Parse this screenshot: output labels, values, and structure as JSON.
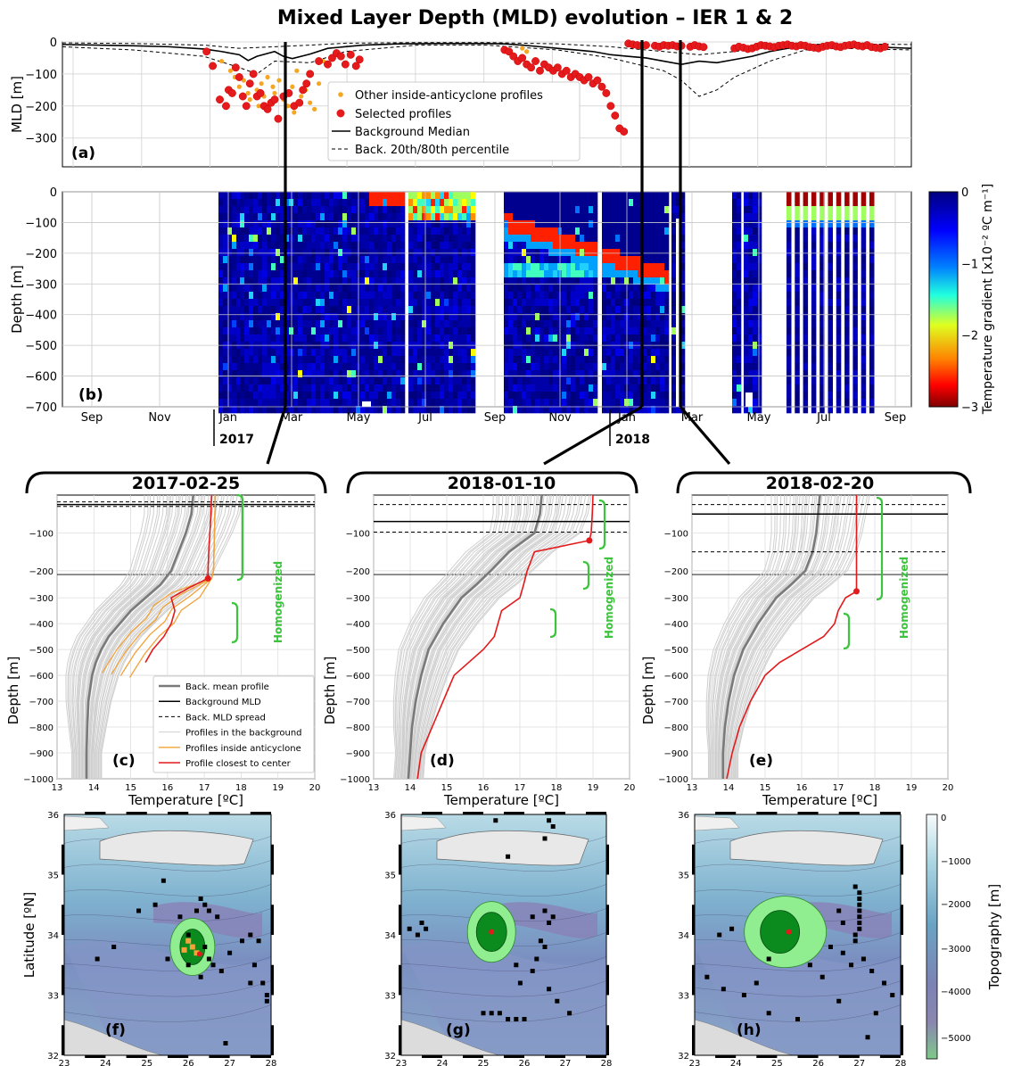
{
  "figure": {
    "title": "Mixed Layer Depth (MLD) evolution – IER 1 & 2"
  },
  "chart_data": [
    {
      "panel": "(a)",
      "type": "line",
      "ylabel": "MLD [m]",
      "ylim": [
        -390,
        0
      ],
      "yticks": [
        0,
        -100,
        -200,
        -300
      ],
      "grid": true,
      "legend_position": "center",
      "legend": [
        "Other inside-anticyclone profiles",
        "Selected profiles",
        "Background Median",
        "Back. 20th/80th percentile"
      ],
      "series": [
        {
          "name": "Background Median",
          "x": [
            0,
            40,
            80,
            120,
            160,
            180,
            200,
            210,
            220,
            240,
            250,
            260,
            280,
            300,
            340,
            380,
            420,
            460,
            480,
            500,
            520,
            540,
            560,
            580,
            600,
            620,
            640,
            660,
            680,
            700,
            720,
            740,
            760,
            780,
            800,
            820,
            840,
            860,
            880,
            900,
            920,
            940,
            960
          ],
          "y": [
            -8,
            -10,
            -12,
            -15,
            -22,
            -30,
            -40,
            -58,
            -45,
            -30,
            -45,
            -52,
            -38,
            -20,
            -10,
            -6,
            -5,
            -5,
            -5,
            -6,
            -10,
            -15,
            -20,
            -25,
            -30,
            -40,
            -45,
            -50,
            -60,
            -70,
            -60,
            -65,
            -55,
            -45,
            -30,
            -20,
            -12,
            -10,
            -12,
            -14,
            -16,
            -18,
            -20
          ]
        },
        {
          "name": "Back. 20th percentile",
          "x": [
            0,
            80,
            160,
            200,
            240,
            280,
            320,
            400,
            480,
            560,
            620,
            680,
            720,
            740,
            760,
            800,
            840,
            880,
            960
          ],
          "y": [
            -3,
            -5,
            -10,
            -20,
            -15,
            -10,
            -4,
            -2,
            -2,
            -6,
            -15,
            -30,
            -40,
            -35,
            -30,
            -15,
            -8,
            -6,
            -8
          ]
        },
        {
          "name": "Back. 80th percentile",
          "x": [
            0,
            80,
            160,
            200,
            220,
            240,
            280,
            320,
            400,
            480,
            560,
            620,
            680,
            700,
            720,
            740,
            760,
            800,
            840,
            880,
            960
          ],
          "y": [
            -15,
            -25,
            -45,
            -80,
            -100,
            -60,
            -65,
            -30,
            -10,
            -10,
            -25,
            -50,
            -90,
            -120,
            -170,
            -150,
            -110,
            -60,
            -25,
            -20,
            -25
          ]
        },
        {
          "name": "Other inside-anticyclone profiles",
          "type": "scatter",
          "x": [
            180,
            190,
            195,
            200,
            205,
            210,
            212,
            215,
            220,
            222,
            225,
            228,
            230,
            232,
            235,
            238,
            240,
            245,
            250,
            255,
            260,
            262,
            265,
            270,
            275,
            280,
            285,
            290,
            295,
            520,
            525
          ],
          "y": [
            -60,
            -90,
            -110,
            -140,
            -120,
            -160,
            -180,
            -100,
            -150,
            -200,
            -130,
            -170,
            -210,
            -110,
            -190,
            -140,
            -160,
            -120,
            -180,
            -200,
            -140,
            -220,
            -90,
            -170,
            -150,
            -190,
            -210,
            -130,
            -60,
            -20,
            -30
          ]
        },
        {
          "name": "Selected profiles",
          "type": "scatter",
          "x": [
            163,
            170,
            178,
            185,
            188,
            192,
            196,
            200,
            204,
            208,
            212,
            216,
            220,
            224,
            228,
            232,
            236,
            240,
            244,
            250,
            256,
            262,
            268,
            272,
            276,
            280,
            290,
            300,
            305,
            310,
            315,
            320,
            326,
            332,
            336,
            500,
            505,
            510,
            515,
            520,
            525,
            530,
            535,
            540,
            545,
            550,
            555,
            560,
            565,
            570,
            575,
            580,
            585,
            590,
            595,
            600,
            605,
            610,
            615,
            620,
            625,
            630,
            635,
            640,
            645,
            650,
            655,
            660,
            670,
            675,
            680,
            685,
            690,
            695,
            700,
            710,
            715,
            720,
            725,
            760,
            765,
            770,
            775,
            780,
            785,
            790,
            795,
            800,
            805,
            810,
            815,
            820,
            825,
            830,
            835,
            840,
            845,
            850,
            855,
            860,
            865,
            870,
            875,
            880,
            885,
            890,
            895,
            900,
            905,
            910,
            915,
            920,
            925,
            930
          ],
          "y": [
            -30,
            -75,
            -180,
            -200,
            -150,
            -160,
            -80,
            -110,
            -170,
            -200,
            -130,
            -100,
            -170,
            -160,
            -200,
            -210,
            -190,
            -180,
            -240,
            -170,
            -160,
            -200,
            -190,
            -150,
            -130,
            -100,
            -60,
            -70,
            -50,
            -35,
            -45,
            -70,
            -40,
            -75,
            -55,
            -25,
            -30,
            -45,
            -60,
            -50,
            -70,
            -80,
            -60,
            -90,
            -70,
            -80,
            -90,
            -80,
            -100,
            -90,
            -110,
            -100,
            -110,
            -120,
            -110,
            -130,
            -120,
            -140,
            -160,
            -200,
            -230,
            -270,
            -280,
            -5,
            -8,
            -10,
            -12,
            -10,
            -12,
            -15,
            -10,
            -12,
            -10,
            -14,
            -12,
            -15,
            -10,
            -14,
            -16,
            -20,
            -15,
            -18,
            -22,
            -20,
            -15,
            -10,
            -12,
            -14,
            -16,
            -12,
            -10,
            -8,
            -12,
            -14,
            -10,
            -12,
            -16,
            -18,
            -20,
            -15,
            -12,
            -10,
            -14,
            -16,
            -12,
            -10,
            -8,
            -12,
            -14,
            -10,
            -16,
            -18,
            -20,
            -15
          ]
        }
      ],
      "annotation": "(a)"
    },
    {
      "panel": "(b)",
      "type": "heatmap",
      "ylabel": "Depth [m]",
      "ylim": [
        -700,
        0
      ],
      "yticks": [
        0,
        -100,
        -200,
        -300,
        -400,
        -500,
        -600,
        -700
      ],
      "xticks": [
        "Sep",
        "Nov",
        "Jan",
        "Mar",
        "May",
        "Jul",
        "Sep",
        "Nov",
        "Jan",
        "Mar",
        "May",
        "Jul",
        "Sep"
      ],
      "year_labels": [
        "2017",
        "2018"
      ],
      "colorbar_label": "Temperature gradient [x10⁻² ºC m⁻¹]",
      "colorbar_ticks": [
        0,
        -1,
        -2,
        -3
      ],
      "annotation": "(b)"
    },
    {
      "panel": "(c)",
      "type": "line",
      "date": "2017-02-25",
      "xlabel": "Temperature [ºC]",
      "ylabel": "Depth [m]",
      "xlim": [
        13,
        20
      ],
      "ylim": [
        -1000,
        0
      ],
      "xticks": [
        13,
        14,
        15,
        16,
        17,
        18,
        19,
        20
      ],
      "yticks": [
        -100,
        -200,
        -300,
        -400,
        -500,
        -600,
        -700,
        -800,
        -900,
        -1000
      ],
      "legend": [
        "Back. mean profile",
        "Background MLD",
        "Back. MLD spread",
        "Profiles in the background",
        "Profiles inside anticyclone",
        "Profile closest to center"
      ],
      "homogenized_label": "Homogenized",
      "background_mld": -25,
      "mld_spread": [
        -18,
        -30
      ],
      "series": [
        {
          "name": "Back. mean profile",
          "depth": [
            0,
            -50,
            -100,
            -150,
            -200,
            -250,
            -300,
            -350,
            -400,
            -450,
            -500,
            -550,
            -600,
            -650,
            -700,
            -800,
            -900,
            -1000
          ],
          "temp": [
            16.7,
            16.65,
            16.5,
            16.3,
            16.1,
            15.8,
            15.4,
            15.0,
            14.7,
            14.4,
            14.2,
            14.05,
            13.95,
            13.9,
            13.85,
            13.82,
            13.8,
            13.8
          ]
        },
        {
          "name": "Profile closest to center",
          "depth": [
            0,
            -50,
            -100,
            -150,
            -200,
            -225,
            -260,
            -300,
            -350,
            -400,
            -450,
            -500,
            -550
          ],
          "temp": [
            17.2,
            17.18,
            17.15,
            17.12,
            17.1,
            17.1,
            16.6,
            16.1,
            16.2,
            16.1,
            15.9,
            15.6,
            15.4
          ]
        }
      ],
      "annotation": "(c)"
    },
    {
      "panel": "(d)",
      "type": "line",
      "date": "2018-01-10",
      "xlabel": "Temperature [ºC]",
      "ylabel": "Depth [m]",
      "xlim": [
        13,
        20
      ],
      "ylim": [
        -1000,
        0
      ],
      "xticks": [
        13,
        14,
        15,
        16,
        17,
        18,
        19,
        20
      ],
      "yticks": [
        -100,
        -200,
        -300,
        -400,
        -500,
        -600,
        -700,
        -800,
        -900,
        -1000
      ],
      "homogenized_label": "Homogenized",
      "background_mld": -70,
      "mld_spread": [
        -25,
        -98
      ],
      "series": [
        {
          "name": "Back. mean profile",
          "depth": [
            0,
            -50,
            -100,
            -150,
            -200,
            -250,
            -300,
            -400,
            -500,
            -600,
            -700,
            -800,
            -900,
            -1000
          ],
          "temp": [
            17.6,
            17.55,
            17.4,
            16.7,
            16.2,
            15.8,
            15.4,
            14.9,
            14.5,
            14.3,
            14.15,
            14.05,
            14.0,
            13.95
          ]
        },
        {
          "name": "Profile closest to center",
          "depth": [
            0,
            -50,
            -100,
            -120,
            -150,
            -200,
            -250,
            -300,
            -350,
            -400,
            -450,
            -500,
            -600,
            -700,
            -800,
            -900,
            -1000
          ],
          "temp": [
            19.0,
            18.98,
            18.95,
            18.9,
            17.4,
            17.2,
            17.1,
            17.0,
            16.5,
            16.4,
            16.3,
            16.0,
            15.2,
            14.9,
            14.6,
            14.3,
            14.2
          ]
        }
      ],
      "annotation": "(d)"
    },
    {
      "panel": "(e)",
      "type": "line",
      "date": "2018-02-20",
      "xlabel": "Temperature [ºC]",
      "ylabel": "Depth [m]",
      "xlim": [
        13,
        20
      ],
      "ylim": [
        -1000,
        0
      ],
      "xticks": [
        13,
        14,
        15,
        16,
        17,
        18,
        19,
        20
      ],
      "yticks": [
        -100,
        -200,
        -300,
        -400,
        -500,
        -600,
        -700,
        -800,
        -900,
        -1000
      ],
      "homogenized_label": "Homogenized",
      "background_mld": -50,
      "mld_spread": [
        -25,
        -150
      ],
      "series": [
        {
          "name": "Back. mean profile",
          "depth": [
            0,
            -50,
            -100,
            -150,
            -200,
            -250,
            -300,
            -400,
            -500,
            -600,
            -700,
            -800,
            -900,
            -1000
          ],
          "temp": [
            16.5,
            16.45,
            16.4,
            16.3,
            16.1,
            15.7,
            15.3,
            14.8,
            14.4,
            14.15,
            14.0,
            13.9,
            13.85,
            13.85
          ]
        },
        {
          "name": "Profile closest to center",
          "depth": [
            0,
            -100,
            -200,
            -275,
            -300,
            -350,
            -400,
            -450,
            -500,
            -550,
            -600,
            -700,
            -800,
            -900,
            -1000
          ],
          "temp": [
            17.5,
            17.5,
            17.5,
            17.5,
            17.2,
            17.0,
            16.9,
            16.6,
            16.0,
            15.4,
            15.0,
            14.6,
            14.3,
            14.1,
            13.95
          ]
        }
      ],
      "annotation": "(e)"
    },
    {
      "panel": "(f)",
      "type": "map",
      "xlabel": "",
      "ylabel": "Latitude [ºN]",
      "xlim": [
        23,
        28
      ],
      "ylim": [
        32,
        36
      ],
      "xticks": [
        23,
        24,
        25,
        26,
        27,
        28
      ],
      "yticks": [
        32,
        33,
        34,
        35,
        36
      ],
      "eddy_center": [
        26.1,
        33.8
      ],
      "annotation": "(f)"
    },
    {
      "panel": "(g)",
      "type": "map",
      "xlim": [
        23,
        28
      ],
      "ylim": [
        32,
        36
      ],
      "xticks": [
        23,
        24,
        25,
        26,
        27,
        28
      ],
      "yticks": [
        32,
        33,
        34,
        35,
        36
      ],
      "eddy_center": [
        25.2,
        34.05
      ],
      "annotation": "(g)"
    },
    {
      "panel": "(h)",
      "type": "map",
      "xlim": [
        23,
        28
      ],
      "ylim": [
        32,
        36
      ],
      "xticks": [
        23,
        24,
        25,
        26,
        27,
        28
      ],
      "yticks": [
        32,
        33,
        34,
        35,
        36
      ],
      "eddy_center": [
        25.2,
        34.05
      ],
      "colorbar_label": "Topography [m]",
      "colorbar_ticks": [
        0,
        -1000,
        -2000,
        -3000,
        -4000,
        -5000
      ],
      "annotation": "(h)"
    }
  ]
}
